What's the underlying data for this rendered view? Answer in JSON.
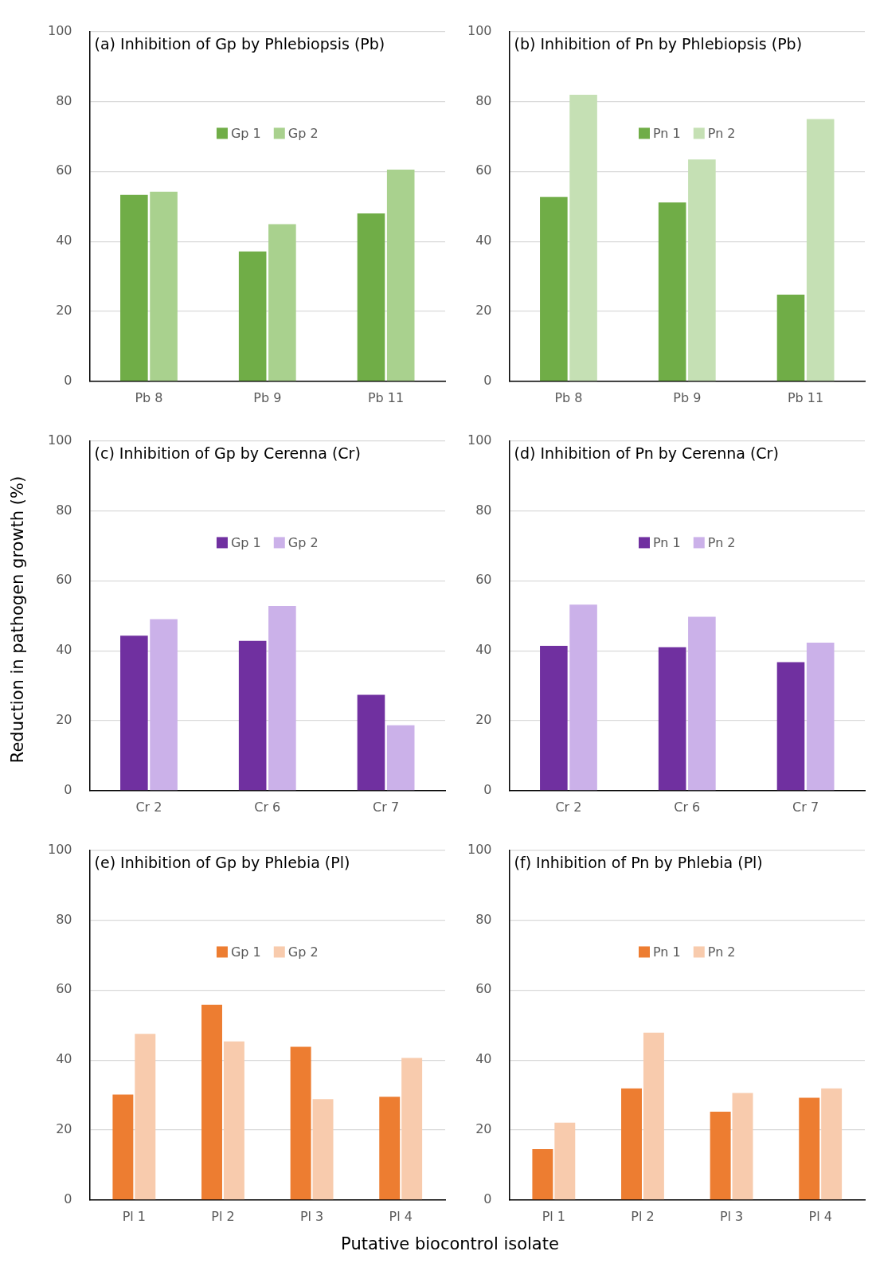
{
  "chart_data": [
    {
      "type": "bar",
      "title": "(a) Inhibition of Gp by Phlebiopsis (Pb)",
      "categories": [
        "Pb 8",
        "Pb 9",
        "Pb 11"
      ],
      "series": [
        {
          "name": "Gp 1",
          "color": "#70ad47",
          "values": [
            53.3,
            37.1,
            48.0
          ]
        },
        {
          "name": "Gp 2",
          "color": "#a9d18e",
          "values": [
            54.2,
            44.9,
            60.5
          ]
        }
      ],
      "ylim": [
        0,
        100
      ],
      "yticks": [
        0,
        20,
        40,
        60,
        80,
        100
      ],
      "grid": "y",
      "legend": "top"
    },
    {
      "type": "bar",
      "title": "(b) Inhibition of Pn by Phlebiopsis (Pb)",
      "categories": [
        "Pb 8",
        "Pb 9",
        "Pb 11"
      ],
      "series": [
        {
          "name": "Pn 1",
          "color": "#70ad47",
          "values": [
            52.7,
            51.1,
            24.8
          ]
        },
        {
          "name": "Pn 2",
          "color": "#c5e0b4",
          "values": [
            81.9,
            63.4,
            75.0
          ]
        }
      ],
      "ylim": [
        0,
        100
      ],
      "yticks": [
        0,
        20,
        40,
        60,
        80,
        100
      ],
      "grid": "y",
      "legend": "top"
    },
    {
      "type": "bar",
      "title": "(c) Inhibition of Gp by Cerenna (Cr)",
      "ylabel": "Reduction in pathogen growth (%)",
      "categories": [
        "Cr 2",
        "Cr 6",
        "Cr 7"
      ],
      "series": [
        {
          "name": "Gp 1",
          "color": "#7030a0",
          "values": [
            44.3,
            42.8,
            27.4
          ]
        },
        {
          "name": "Gp 2",
          "color": "#cbb1e9",
          "values": [
            49.0,
            52.8,
            18.7
          ]
        }
      ],
      "ylim": [
        0,
        100
      ],
      "yticks": [
        0,
        20,
        40,
        60,
        80,
        100
      ],
      "grid": "y",
      "legend": "top"
    },
    {
      "type": "bar",
      "title": "(d) Inhibition of Pn by Cerenna (Cr)",
      "categories": [
        "Cr 2",
        "Cr 6",
        "Cr 7"
      ],
      "series": [
        {
          "name": "Pn 1",
          "color": "#7030a0",
          "values": [
            41.4,
            41.0,
            36.7
          ]
        },
        {
          "name": "Pn 2",
          "color": "#cbb1e9",
          "values": [
            53.2,
            49.7,
            42.3
          ]
        }
      ],
      "ylim": [
        0,
        100
      ],
      "yticks": [
        0,
        20,
        40,
        60,
        80,
        100
      ],
      "grid": "y",
      "legend": "top"
    },
    {
      "type": "bar",
      "title": "(e) Inhibition of Gp by Phlebia (Pl)",
      "xlabel": "Putative biocontrol isolate",
      "categories": [
        "Pl 1",
        "Pl 2",
        "Pl 3",
        "Pl 4"
      ],
      "series": [
        {
          "name": "Gp 1",
          "color": "#ed7d31",
          "values": [
            30.1,
            55.8,
            43.8,
            29.5
          ]
        },
        {
          "name": "Gp 2",
          "color": "#f8cbad",
          "values": [
            47.5,
            45.3,
            28.8,
            40.6
          ]
        }
      ],
      "ylim": [
        0,
        100
      ],
      "yticks": [
        0,
        20,
        40,
        60,
        80,
        100
      ],
      "grid": "y",
      "legend": "top"
    },
    {
      "type": "bar",
      "title": "(f) Inhibition of Pn by Phlebia (Pl)",
      "categories": [
        "Pl 1",
        "Pl 2",
        "Pl 3",
        "Pl 4"
      ],
      "series": [
        {
          "name": "Pn 1",
          "color": "#ed7d31",
          "values": [
            14.5,
            31.9,
            25.2,
            29.2
          ]
        },
        {
          "name": "Pn 2",
          "color": "#f8cbad",
          "values": [
            22.1,
            47.8,
            30.6,
            31.9
          ]
        }
      ],
      "ylim": [
        0,
        100
      ],
      "yticks": [
        0,
        20,
        40,
        60,
        80,
        100
      ],
      "grid": "y",
      "legend": "top"
    }
  ]
}
